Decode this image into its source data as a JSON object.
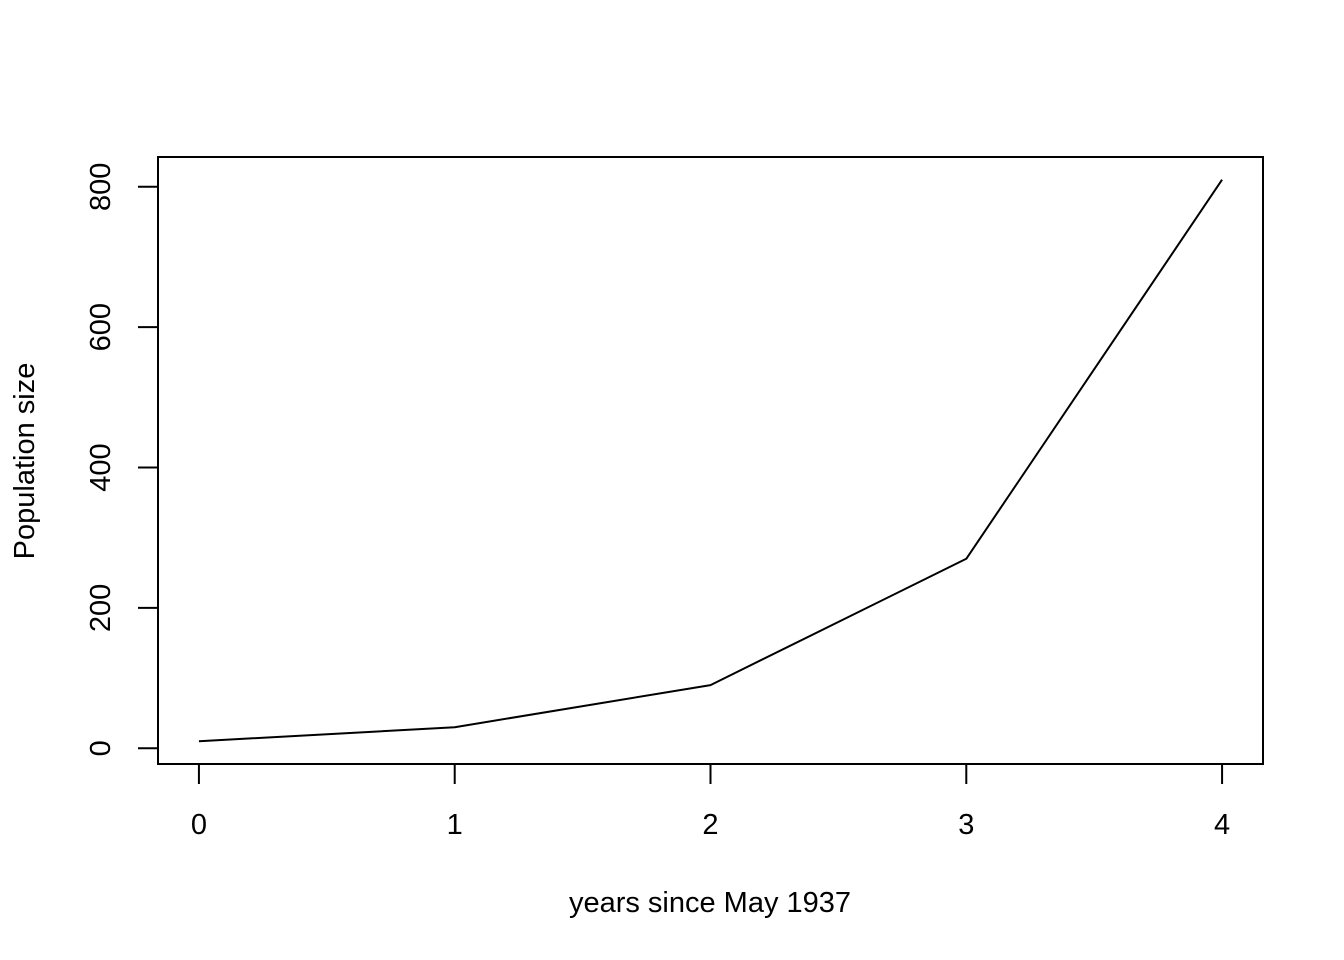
{
  "chart_data": {
    "type": "line",
    "title": "",
    "xlabel": "years since May 1937",
    "ylabel": "Population size",
    "x": [
      0,
      1,
      2,
      3,
      4
    ],
    "series": [
      {
        "values": [
          10,
          30,
          90,
          270,
          810
        ]
      }
    ],
    "xlim": [
      -0.16,
      4.16
    ],
    "ylim": [
      -22.4,
      842.4
    ],
    "x_ticks": [
      0,
      1,
      2,
      3,
      4
    ],
    "x_tick_labels": [
      "0",
      "1",
      "2",
      "3",
      "4"
    ],
    "y_ticks": [
      0,
      200,
      400,
      600,
      800
    ],
    "y_tick_labels": [
      "0",
      "200",
      "400",
      "600",
      "800"
    ],
    "grid": false,
    "legend": "none",
    "line_color": "#000000"
  }
}
